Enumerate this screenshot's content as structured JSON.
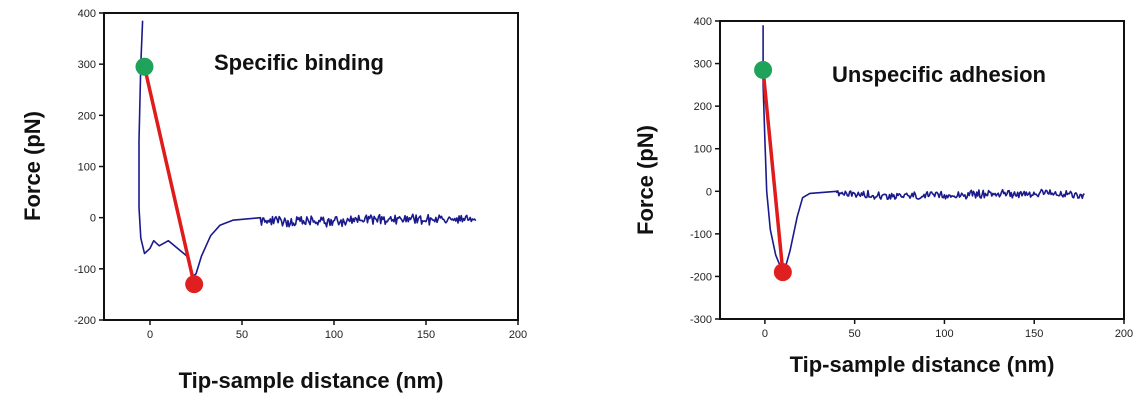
{
  "chart_data": [
    {
      "type": "line",
      "annotation": "Specific binding",
      "xlabel": "Tip-sample distance (nm)",
      "ylabel": "Force (pN)",
      "xlim": [
        -25,
        200
      ],
      "ylim": [
        -200,
        400
      ],
      "x_ticks": [
        0,
        50,
        100,
        150,
        200
      ],
      "y_ticks": [
        -200,
        -100,
        0,
        100,
        200,
        300,
        400
      ],
      "colors": {
        "trace": "#1a1a8c",
        "fit_line": "#e01b1b",
        "start_marker": "#1fa35a",
        "end_marker": "#e02020"
      },
      "markers": {
        "start": {
          "x": -3,
          "y": 295
        },
        "end": {
          "x": 24,
          "y": -130
        }
      },
      "trace": {
        "approach": [
          [
            -4,
            385
          ],
          [
            -5,
            300
          ],
          [
            -6,
            150
          ],
          [
            -6,
            20
          ],
          [
            -5,
            -40
          ],
          [
            -3,
            -70
          ],
          [
            0,
            -60
          ],
          [
            2,
            -45
          ],
          [
            5,
            -55
          ],
          [
            10,
            -45
          ],
          [
            15,
            -60
          ],
          [
            20,
            -75
          ],
          [
            23,
            -115
          ],
          [
            25,
            -110
          ],
          [
            28,
            -75
          ],
          [
            33,
            -35
          ],
          [
            38,
            -15
          ],
          [
            45,
            -5
          ],
          [
            60,
            0
          ]
        ],
        "baseline": {
          "x_start": 60,
          "x_end": 177,
          "y_level": -5,
          "noise": 16
        }
      }
    },
    {
      "type": "line",
      "annotation": "Unspecific adhesion",
      "xlabel": "Tip-sample distance (nm)",
      "ylabel": "Force (pN)",
      "xlim": [
        -25,
        200
      ],
      "ylim": [
        -300,
        400
      ],
      "x_ticks": [
        0,
        50,
        100,
        150,
        200
      ],
      "y_ticks": [
        -300,
        -200,
        -100,
        0,
        100,
        200,
        300,
        400
      ],
      "colors": {
        "trace": "#1a1a8c",
        "fit_line": "#e01b1b",
        "start_marker": "#1fa35a",
        "end_marker": "#e02020"
      },
      "markers": {
        "start": {
          "x": -1,
          "y": 285
        },
        "end": {
          "x": 10,
          "y": -190
        }
      },
      "trace": {
        "approach": [
          [
            -1,
            390
          ],
          [
            -1,
            250
          ],
          [
            0,
            120
          ],
          [
            1,
            0
          ],
          [
            3,
            -90
          ],
          [
            6,
            -150
          ],
          [
            9,
            -180
          ],
          [
            11,
            -185
          ],
          [
            14,
            -140
          ],
          [
            18,
            -60
          ],
          [
            21,
            -15
          ],
          [
            25,
            -5
          ],
          [
            40,
            0
          ]
        ],
        "baseline": {
          "x_start": 40,
          "x_end": 178,
          "y_level": -8,
          "noise": 14
        }
      }
    }
  ]
}
